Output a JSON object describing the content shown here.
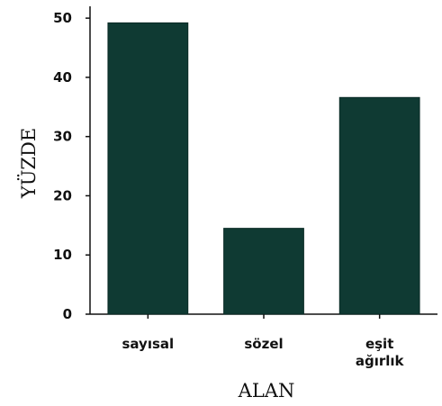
{
  "chart_data": {
    "type": "bar",
    "categories": [
      [
        "sayısal"
      ],
      [
        "sözel"
      ],
      [
        "eşit",
        "ağırlık"
      ]
    ],
    "values": [
      49.2,
      14.5,
      36.6
    ],
    "xlabel": "ALAN",
    "ylabel": "YÜZDE",
    "ylim": [
      0,
      52
    ],
    "yticks": [
      0,
      10,
      20,
      30,
      40,
      50
    ],
    "grid": false,
    "bar_color": "#0f3a33",
    "axis_color": "#111111"
  }
}
